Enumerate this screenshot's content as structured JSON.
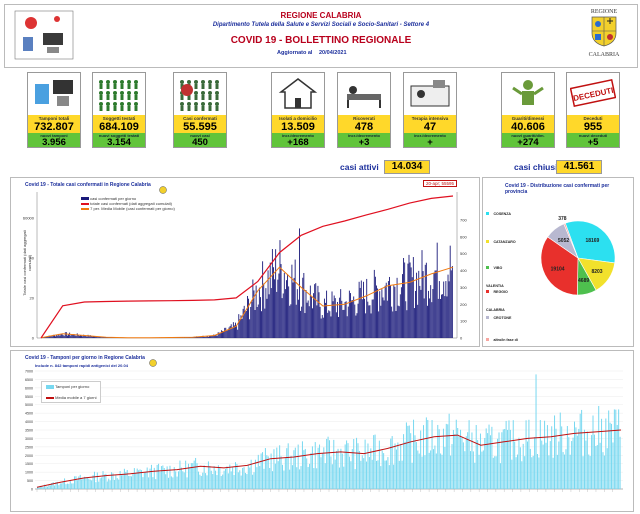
{
  "header": {
    "region": "REGIONE CALABRIA",
    "department": "Dipartimento Tutela della Salute e Servizi Sociali e Socio-Sanitari - Settore 4",
    "title": "COVID 19 - BOLLETTINO REGIONALE",
    "updated_label": "Aggiornato al",
    "updated_date": "20/04/2021",
    "logo_text_top": "REGIONE",
    "logo_text_bottom": "CALABRIA"
  },
  "tiles": [
    {
      "label": "Tamponi totali",
      "value": "732.807",
      "sub_label": "nuovi tamponi",
      "sub_value": "3.956",
      "icon": "lab-icon"
    },
    {
      "label": "Soggetti testati",
      "value": "684.109",
      "sub_label": "nuovi soggetti testati",
      "sub_value": "3.154",
      "icon": "people-grid-icon"
    },
    {
      "label": "Casi confermati",
      "value": "55.595",
      "sub_label": "nuovi casi",
      "sub_value": "450",
      "icon": "virus-people-icon"
    },
    {
      "label": "Isolati a domicilio",
      "value": "13.509",
      "sub_label": "incr./decremento",
      "sub_value": "+168",
      "icon": "house-icon"
    },
    {
      "label": "Ricoverati",
      "value": "478",
      "sub_label": "incr./decremento",
      "sub_value": "+3",
      "icon": "hospital-bed-icon"
    },
    {
      "label": "Terapia intensiva",
      "value": "47",
      "sub_label": "incr./decremento",
      "sub_value": "+",
      "icon": "icu-icon"
    },
    {
      "label": "Guariti/dimessi",
      "value": "40.606",
      "sub_label": "nuovi guariti/dim.",
      "sub_value": "+274",
      "icon": "recovered-icon"
    },
    {
      "label": "Deceduti",
      "value": "955",
      "sub_label": "nuovi deceduti",
      "sub_value": "+5",
      "icon": "deceased-stamp-icon"
    }
  ],
  "summary": {
    "active_label": "casi attivi",
    "active_value": "14.034",
    "closed_label": "casi chiusi",
    "closed_value": "41.561"
  },
  "stamp_text": "DECEDUTI",
  "chart_data": [
    {
      "type": "bar",
      "title": "Covid 19 - Totale casi confermati in Regione Calabria",
      "callout": "20-apr; 55595",
      "ylabel_left": "Totale casi confermati (dati aggregati cumulati)",
      "legend": [
        "casi confermati per giorno",
        "totale casi confermati (dati aggregati cumulati)",
        "7 per. Media Mobile (casi confermati per giorno)"
      ],
      "colors": {
        "daily": "#1a1a7a",
        "cumulative": "#e01020",
        "moving_avg": "#f07a10"
      },
      "y_left_ticks": [
        "60000",
        "40",
        "20",
        "0"
      ],
      "y_right_ticks": [
        "700",
        "600",
        "500",
        "400",
        "300",
        "200",
        "100",
        "0"
      ],
      "cumulative_end": 55595,
      "series": [
        {
          "name": "totale casi confermati (dati aggregati cumulati)",
          "values": [
            0,
            800,
            1100,
            1150,
            1180,
            1200,
            1220,
            1250,
            1300,
            1500,
            4000,
            13000,
            22000,
            28000,
            32000,
            37000,
            42000,
            48000,
            53000,
            55595
          ]
        },
        {
          "name": "7 per. Media Mobile (casi confermati per giorno)",
          "values": [
            2,
            25,
            15,
            4,
            2,
            2,
            3,
            5,
            15,
            70,
            280,
            420,
            300,
            190,
            200,
            250,
            310,
            330,
            380,
            420
          ]
        }
      ]
    },
    {
      "type": "pie",
      "title": "Covid 19 - Distribuzione casi confermati per provincia",
      "slices": [
        {
          "name": "COSENZA",
          "value": 18169,
          "color": "#2ce0f0"
        },
        {
          "name": "CATANZARO",
          "value": 8203,
          "color": "#f2e12c"
        },
        {
          "name": "VIBO VALENTIA",
          "value": 4689,
          "color": "#4ec04e"
        },
        {
          "name": "REGGIO CALABRIA",
          "value": 19104,
          "color": "#e8302c"
        },
        {
          "name": "CROTONE",
          "value": 5052,
          "color": "#b8b8d0"
        },
        {
          "name": "altro/in fase di verifica (altra Regione/ Stato Estero e sbarchi)",
          "value": 378,
          "color": "#f7a6a0"
        }
      ]
    },
    {
      "type": "bar",
      "title": "Covid 19 - Tamponi per giorno in Regione Calabria",
      "subtitle": "Include n. 842 tamponi rapidi antigenici del 20.04",
      "legend": [
        "Tamponi per giorno",
        "Media mobile a 7 giorni"
      ],
      "colors": {
        "daily": "#78d8f0",
        "moving_avg": "#c01010"
      },
      "y_ticks": [
        "7000",
        "6500",
        "6000",
        "5500",
        "5000",
        "4500",
        "4000",
        "3500",
        "3000",
        "2500",
        "2000",
        "1500",
        "1000",
        "500",
        "0"
      ],
      "series": [
        {
          "name": "Media mobile a 7 giorni",
          "values": [
            100,
            400,
            650,
            800,
            900,
            1050,
            1150,
            1350,
            1250,
            1400,
            1800,
            1900,
            2100,
            2200,
            2100,
            2400,
            2800,
            3100,
            3200,
            2600,
            2800,
            3000,
            3100,
            3300,
            3400,
            3500
          ]
        }
      ]
    }
  ]
}
